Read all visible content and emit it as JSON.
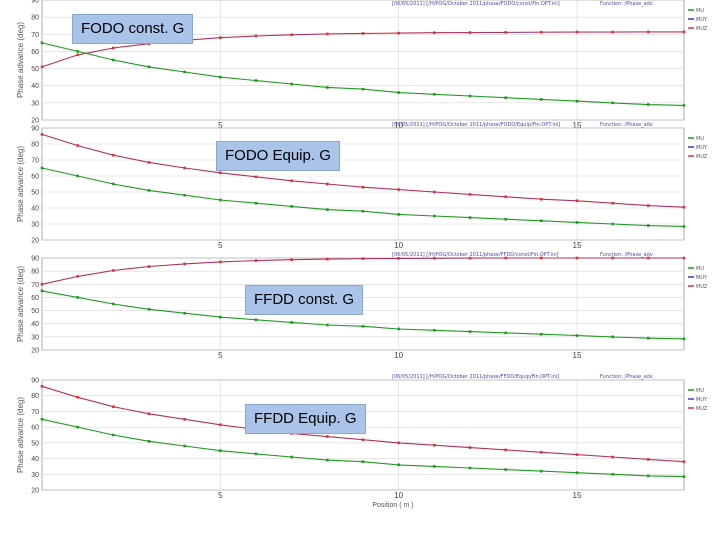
{
  "colors": {
    "green": "#1e9a1e",
    "red": "#e03030",
    "blue": "#3a3ad0",
    "grid": "#d8d8d8",
    "axis": "#999999"
  },
  "chart_data": [
    {
      "type": "line",
      "title": "FODO const. G",
      "header": "[06/05/2011] [/H/POG/October 2011/phase/FODO/const/Fin.OPT.ini]",
      "header_right": "Function: /Phase_adv",
      "xlabel": "",
      "ylabel": "Phase advance (deg)",
      "xlim": [
        0,
        18
      ],
      "ylim": [
        20,
        90
      ],
      "xticks": [
        5,
        10,
        15
      ],
      "yticks": [
        20,
        30,
        40,
        50,
        60,
        70,
        80,
        90
      ],
      "grid": true,
      "legend_position": "right",
      "series": [
        {
          "name": "MU",
          "color": "green",
          "x": [
            0,
            1,
            2,
            3,
            4,
            5,
            6,
            7,
            8,
            9,
            10,
            11,
            12,
            13,
            14,
            15,
            16,
            17,
            18
          ],
          "y": [
            65,
            60,
            55,
            51,
            48,
            45,
            43,
            41,
            39,
            38,
            36,
            35,
            34,
            33,
            32,
            31,
            30,
            29,
            28.5
          ]
        },
        {
          "name": "MUY",
          "color": "red",
          "x": [
            0,
            1,
            2,
            3,
            4,
            5,
            6,
            7,
            8,
            9,
            10,
            11,
            12,
            13,
            14,
            15,
            16,
            17,
            18
          ],
          "y": [
            51,
            58,
            62,
            64.5,
            66.5,
            68,
            69,
            69.7,
            70.2,
            70.5,
            70.7,
            70.9,
            71,
            71.1,
            71.2,
            71.3,
            71.3,
            71.4,
            71.4
          ]
        }
      ]
    },
    {
      "type": "line",
      "title": "FODO Equip. G",
      "header": "[06/05/2011] [/H/POG/October 2011/phase/FODO/Equip/Fin.OPT.ini]",
      "header_right": "Function: /Phase_adv",
      "xlabel": "",
      "ylabel": "Phase advance (deg)",
      "xlim": [
        0,
        18
      ],
      "ylim": [
        20,
        90
      ],
      "xticks": [
        5,
        10,
        15
      ],
      "yticks": [
        20,
        30,
        40,
        50,
        60,
        70,
        80,
        90
      ],
      "grid": true,
      "legend_position": "right",
      "series": [
        {
          "name": "MU",
          "color": "green",
          "x": [
            0,
            1,
            2,
            3,
            4,
            5,
            6,
            7,
            8,
            9,
            10,
            11,
            12,
            13,
            14,
            15,
            16,
            17,
            18
          ],
          "y": [
            65,
            60,
            55,
            51,
            48,
            45,
            43,
            41,
            39,
            38,
            36,
            35,
            34,
            33,
            32,
            31,
            30,
            29,
            28.5
          ]
        },
        {
          "name": "MUY",
          "color": "red",
          "x": [
            0,
            1,
            2,
            3,
            4,
            5,
            6,
            7,
            8,
            9,
            10,
            11,
            12,
            13,
            14,
            15,
            16,
            17,
            18
          ],
          "y": [
            86,
            79,
            73,
            68.5,
            65,
            62,
            59.5,
            57,
            55,
            53,
            51.5,
            50,
            48.5,
            47,
            45.5,
            44.5,
            43,
            41.5,
            40.5
          ]
        }
      ]
    },
    {
      "type": "line",
      "title": "FFDD const. G",
      "header": "[06/05/2011] [/H/POG/October 2011/phase/FFDD/const/Fin.OPT.ini]",
      "header_right": "Function: /Phase_adv",
      "xlabel": "",
      "ylabel": "Phase advance (deg)",
      "xlim": [
        0,
        18
      ],
      "ylim": [
        20,
        90
      ],
      "xticks": [
        5,
        10,
        15
      ],
      "yticks": [
        20,
        30,
        40,
        50,
        60,
        70,
        80,
        90
      ],
      "grid": true,
      "legend_position": "right",
      "series": [
        {
          "name": "MU",
          "color": "green",
          "x": [
            0,
            1,
            2,
            3,
            4,
            5,
            6,
            7,
            8,
            9,
            10,
            11,
            12,
            13,
            14,
            15,
            16,
            17,
            18
          ],
          "y": [
            65,
            60,
            55,
            51,
            48,
            45,
            43,
            41,
            39,
            38,
            36,
            35,
            34,
            33,
            32,
            31,
            30,
            29,
            28.5
          ]
        },
        {
          "name": "MUY",
          "color": "red",
          "x": [
            0,
            1,
            2,
            3,
            4,
            5,
            6,
            7,
            8,
            9,
            10,
            11,
            12,
            13,
            14,
            15,
            16,
            17,
            18
          ],
          "y": [
            70,
            76,
            80.5,
            83.5,
            85.5,
            87,
            88,
            88.7,
            89.2,
            89.5,
            89.7,
            89.8,
            89.9,
            90,
            90,
            90,
            90,
            90,
            90
          ]
        }
      ]
    },
    {
      "type": "line",
      "title": "FFDD Equip. G",
      "header": "[06/05/2011] [/H/POG/October 2011/phase/FFDD/Equip/Fin.OPT.ini]",
      "header_right": "Function: /Phase_adv",
      "xlabel": "Position ( m )",
      "ylabel": "Phase advance (deg)",
      "xlim": [
        0,
        18
      ],
      "ylim": [
        20,
        90
      ],
      "xticks": [
        5,
        10,
        15
      ],
      "yticks": [
        20,
        30,
        40,
        50,
        60,
        70,
        80,
        90
      ],
      "grid": true,
      "legend_position": "right",
      "series": [
        {
          "name": "MU",
          "color": "green",
          "x": [
            0,
            1,
            2,
            3,
            4,
            5,
            6,
            7,
            8,
            9,
            10,
            11,
            12,
            13,
            14,
            15,
            16,
            17,
            18
          ],
          "y": [
            65,
            60,
            55,
            51,
            48,
            45,
            43,
            41,
            39,
            38,
            36,
            35,
            34,
            33,
            32,
            31,
            30,
            29,
            28.5
          ]
        },
        {
          "name": "MUY",
          "color": "red",
          "x": [
            0,
            1,
            2,
            3,
            4,
            5,
            6,
            7,
            8,
            9,
            10,
            11,
            12,
            13,
            14,
            15,
            16,
            17,
            18
          ],
          "y": [
            86,
            79,
            73,
            68.5,
            65,
            61.5,
            58.5,
            56,
            54,
            52,
            50,
            48.5,
            47,
            45.5,
            44,
            42.5,
            41,
            39.5,
            38
          ]
        }
      ]
    }
  ],
  "legend_items": [
    "MU",
    "MUY",
    "MUZ"
  ]
}
